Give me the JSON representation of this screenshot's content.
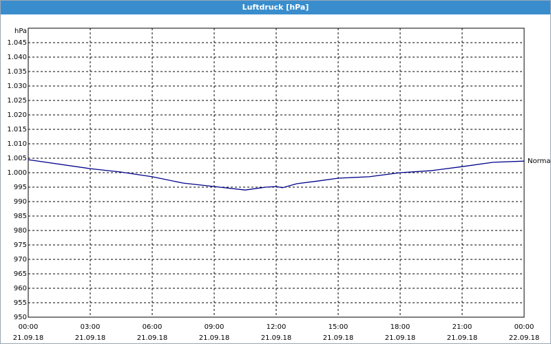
{
  "chart_data": {
    "type": "line",
    "title": "Luftdruck [hPa]",
    "y_unit": "hPa",
    "xlim": [
      0,
      24
    ],
    "xticks": [
      {
        "value": 0,
        "label": "00:00",
        "date": "21.09.18"
      },
      {
        "value": 3,
        "label": "03:00",
        "date": "21.09.18"
      },
      {
        "value": 6,
        "label": "06:00",
        "date": "21.09.18"
      },
      {
        "value": 9,
        "label": "09:00",
        "date": "21.09.18"
      },
      {
        "value": 12,
        "label": "12:00",
        "date": "21.09.18"
      },
      {
        "value": 15,
        "label": "15:00",
        "date": "21.09.18"
      },
      {
        "value": 18,
        "label": "18:00",
        "date": "21.09.18"
      },
      {
        "value": 21,
        "label": "21:00",
        "date": "21.09.18"
      },
      {
        "value": 24,
        "label": "00:00",
        "date": "22.09.18"
      }
    ],
    "ylim": [
      950,
      1050
    ],
    "yticks": [
      950,
      955,
      960,
      965,
      970,
      975,
      980,
      985,
      990,
      995,
      {
        "value": 1000,
        "label": "1.000"
      },
      {
        "value": 1005,
        "label": "1.005"
      },
      {
        "value": 1010,
        "label": "1.010"
      },
      {
        "value": 1015,
        "label": "1.015"
      },
      {
        "value": 1020,
        "label": "1.020"
      },
      {
        "value": 1025,
        "label": "1.025"
      },
      {
        "value": 1030,
        "label": "1.030"
      },
      {
        "value": 1035,
        "label": "1.035"
      },
      {
        "value": 1040,
        "label": "1.040"
      },
      {
        "value": 1045,
        "label": "1.045"
      }
    ],
    "grid": true,
    "series": [
      {
        "name": "Normal",
        "color": "#00008b",
        "x": [
          0,
          3,
          4.5,
          6,
          7.5,
          9,
          10.5,
          11.5,
          12,
          12.3,
          13,
          14,
          15,
          16.5,
          18,
          19.5,
          21,
          22.5,
          24
        ],
        "values": [
          1004.5,
          1001.4,
          1000.2,
          998.6,
          996.4,
          995.2,
          994.0,
          995.0,
          995.2,
          994.8,
          996.2,
          997.1,
          998.1,
          998.6,
          1000.0,
          1000.7,
          1002.1,
          1003.6,
          1004.0
        ]
      }
    ]
  }
}
